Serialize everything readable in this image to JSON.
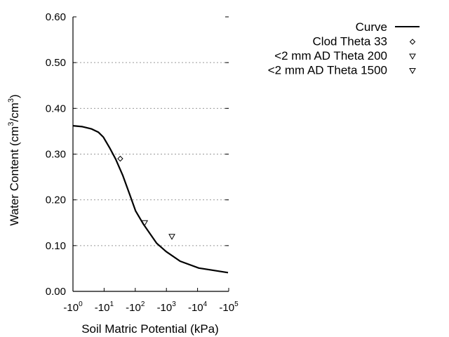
{
  "chart_data": {
    "type": "line",
    "title": "",
    "xlabel": "Soil Matric Potential (kPa)",
    "ylabel": "Water Content (cm3/cm3)",
    "ylabel_parts": {
      "pre": "Water Content (cm",
      "sup1": "3",
      "mid": "/cm",
      "sup2": "3",
      "post": ")"
    },
    "x_scale": "log (negative)",
    "xlim": [
      1,
      100000
    ],
    "ylim": [
      0,
      0.6
    ],
    "x_ticks": [
      {
        "base": "-10",
        "exp": "0",
        "value": 1
      },
      {
        "base": "-10",
        "exp": "1",
        "value": 10
      },
      {
        "base": "-10",
        "exp": "2",
        "value": 100
      },
      {
        "base": "-10",
        "exp": "3",
        "value": 1000
      },
      {
        "base": "-10",
        "exp": "4",
        "value": 10000
      },
      {
        "base": "-10",
        "exp": "5",
        "value": 100000
      }
    ],
    "y_ticks": [
      "0.00",
      "0.10",
      "0.20",
      "0.30",
      "0.40",
      "0.50",
      "0.60"
    ],
    "y_tick_values": [
      0,
      0.1,
      0.2,
      0.3,
      0.4,
      0.5,
      0.6
    ],
    "grid": "horizontal dotted",
    "legend_placement": "top-right outside",
    "series": [
      {
        "name": "Curve",
        "kind": "line",
        "x": [
          1,
          2,
          4,
          6.5,
          9.5,
          15,
          23.5,
          40,
          66,
          102,
          186,
          490,
          977,
          2750,
          11000,
          95000
        ],
        "y": [
          0.362,
          0.36,
          0.355,
          0.348,
          0.337,
          0.314,
          0.289,
          0.253,
          0.212,
          0.176,
          0.146,
          0.105,
          0.087,
          0.066,
          0.051,
          0.041
        ]
      },
      {
        "name": "Clod Theta 33",
        "kind": "scatter",
        "marker": "diamond",
        "x": [
          33
        ],
        "y": [
          0.29
        ]
      },
      {
        "name": "<2 mm AD Theta 200",
        "kind": "scatter",
        "marker": "triangle-down",
        "x": [
          200
        ],
        "y": [
          0.15
        ]
      },
      {
        "name": "<2 mm AD Theta 1500",
        "kind": "scatter",
        "marker": "triangle-down",
        "x": [
          1500
        ],
        "y": [
          0.12
        ]
      }
    ]
  }
}
